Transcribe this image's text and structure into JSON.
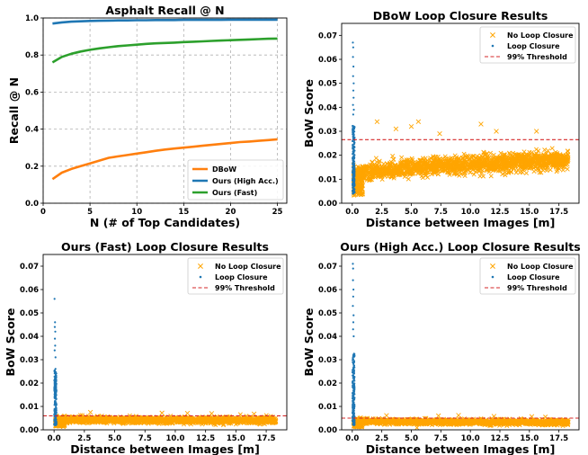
{
  "chart_data": [
    {
      "type": "line",
      "title": "Asphalt Recall @ N",
      "xlabel": "N (# of Top Candidates)",
      "ylabel": "Recall @ N",
      "xlim": [
        0,
        26
      ],
      "ylim": [
        0,
        1.0
      ],
      "xticks": [
        0,
        5,
        10,
        15,
        20,
        25
      ],
      "xtick_labels": [
        "0",
        "5",
        "10",
        "15",
        "20",
        "25"
      ],
      "yticks": [
        0,
        0.2,
        0.4,
        0.6,
        0.8,
        1.0
      ],
      "ytick_labels": [
        "0.0",
        "0.2",
        "0.4",
        "0.6",
        "0.8",
        "1.0"
      ],
      "grid": true,
      "legend_position": "lower-right",
      "x": [
        1,
        2,
        3,
        4,
        5,
        6,
        7,
        8,
        9,
        10,
        11,
        12,
        13,
        14,
        15,
        16,
        17,
        18,
        19,
        20,
        21,
        22,
        23,
        24,
        25
      ],
      "series": [
        {
          "name": "DBoW",
          "color": "#ff7f0e",
          "values": [
            0.13,
            0.165,
            0.185,
            0.2,
            0.215,
            0.23,
            0.245,
            0.253,
            0.26,
            0.268,
            0.275,
            0.283,
            0.29,
            0.295,
            0.3,
            0.305,
            0.31,
            0.315,
            0.32,
            0.325,
            0.33,
            0.333,
            0.337,
            0.341,
            0.345
          ]
        },
        {
          "name": "Ours (High Acc.)",
          "color": "#1f77b4",
          "values": [
            0.97,
            0.976,
            0.98,
            0.982,
            0.984,
            0.985,
            0.986,
            0.987,
            0.987,
            0.988,
            0.988,
            0.989,
            0.989,
            0.989,
            0.99,
            0.99,
            0.99,
            0.99,
            0.99,
            0.991,
            0.991,
            0.991,
            0.991,
            0.991,
            0.991
          ]
        },
        {
          "name": "Ours (Fast)",
          "color": "#2ca02c",
          "values": [
            0.76,
            0.79,
            0.807,
            0.819,
            0.828,
            0.836,
            0.842,
            0.848,
            0.852,
            0.856,
            0.86,
            0.863,
            0.865,
            0.867,
            0.87,
            0.872,
            0.874,
            0.876,
            0.878,
            0.88,
            0.882,
            0.884,
            0.886,
            0.888,
            0.889
          ]
        }
      ]
    },
    {
      "type": "scatter",
      "title": "DBoW Loop Closure Results",
      "xlabel": "Distance between Images [m]",
      "ylabel": "BoW Score",
      "xlim": [
        -0.9,
        19.2
      ],
      "ylim": [
        0,
        0.075
      ],
      "xticks": [
        0,
        2.5,
        5,
        7.5,
        10,
        12.5,
        15,
        17.5
      ],
      "xtick_labels": [
        "0.0",
        "2.5",
        "5.0",
        "7.5",
        "10.0",
        "12.5",
        "15.0",
        "17.5"
      ],
      "yticks": [
        0,
        0.01,
        0.02,
        0.03,
        0.04,
        0.05,
        0.06,
        0.07
      ],
      "ytick_labels": [
        "0.00",
        "0.01",
        "0.02",
        "0.03",
        "0.04",
        "0.05",
        "0.06",
        "0.07"
      ],
      "grid": false,
      "legend_position": "top-right",
      "threshold": {
        "name": "99% Threshold",
        "value": 0.0265,
        "color": "#d62728"
      },
      "series": [
        {
          "name": "No Loop Closure",
          "marker": "x",
          "color": "#ffa500",
          "band": {
            "x_range": [
              0.1,
              18.3
            ],
            "start_mean": 0.011,
            "end_mean": 0.018,
            "spread": 0.003,
            "upper_outliers": [
              [
                2.1,
                0.034
              ],
              [
                5.6,
                0.034
              ],
              [
                5.0,
                0.032
              ],
              [
                10.9,
                0.033
              ],
              [
                15.6,
                0.03
              ],
              [
                12.2,
                0.03
              ],
              [
                3.7,
                0.031
              ],
              [
                7.4,
                0.029
              ]
            ]
          }
        },
        {
          "name": "Loop Closure",
          "marker": "dot",
          "color": "#1f77b4",
          "x_range": [
            0.02,
            0.2
          ],
          "y_range": [
            0.004,
            0.067
          ],
          "tall_points": [
            [
              0.05,
              0.067
            ],
            [
              0.08,
              0.065
            ],
            [
              0.06,
              0.061
            ],
            [
              0.1,
              0.057
            ],
            [
              0.07,
              0.053
            ],
            [
              0.12,
              0.05
            ],
            [
              0.09,
              0.047
            ],
            [
              0.11,
              0.044
            ],
            [
              0.06,
              0.041
            ],
            [
              0.13,
              0.039
            ],
            [
              0.08,
              0.037
            ]
          ]
        }
      ]
    },
    {
      "type": "scatter",
      "title": "Ours (Fast) Loop Closure Results",
      "xlabel": "Distance between Images [m]",
      "ylabel": "BoW Score",
      "xlim": [
        -0.9,
        19.2
      ],
      "ylim": [
        0,
        0.075
      ],
      "xticks": [
        0,
        2.5,
        5,
        7.5,
        10,
        12.5,
        15,
        17.5
      ],
      "xtick_labels": [
        "0.0",
        "2.5",
        "5.0",
        "7.5",
        "10.0",
        "12.5",
        "15.0",
        "17.5"
      ],
      "yticks": [
        0,
        0.01,
        0.02,
        0.03,
        0.04,
        0.05,
        0.06,
        0.07
      ],
      "ytick_labels": [
        "0.00",
        "0.01",
        "0.02",
        "0.03",
        "0.04",
        "0.05",
        "0.06",
        "0.07"
      ],
      "grid": false,
      "legend_position": "top-right",
      "threshold": {
        "name": "99% Threshold",
        "value": 0.006,
        "color": "#d62728"
      },
      "series": [
        {
          "name": "No Loop Closure",
          "marker": "x",
          "color": "#ffa500",
          "band": {
            "x_range": [
              0.1,
              18.3
            ],
            "start_mean": 0.0045,
            "end_mean": 0.004,
            "spread": 0.0011,
            "upper_outliers": [
              [
                3.0,
                0.0075
              ],
              [
                8.9,
                0.0072
              ],
              [
                11.0,
                0.0071
              ],
              [
                13.0,
                0.007
              ],
              [
                16.5,
                0.0068
              ]
            ]
          }
        },
        {
          "name": "Loop Closure",
          "marker": "dot",
          "color": "#1f77b4",
          "x_range": [
            0.02,
            0.2
          ],
          "y_range": [
            0.002,
            0.056
          ],
          "tall_points": [
            [
              0.04,
              0.056
            ],
            [
              0.08,
              0.046
            ],
            [
              0.06,
              0.044
            ],
            [
              0.1,
              0.042
            ],
            [
              0.07,
              0.039
            ],
            [
              0.09,
              0.036
            ],
            [
              0.05,
              0.034
            ],
            [
              0.12,
              0.031
            ]
          ]
        }
      ]
    },
    {
      "type": "scatter",
      "title": "Ours (High Acc.) Loop Closure Results",
      "xlabel": "Distance between Images [m]",
      "ylabel": "BoW Score",
      "xlim": [
        -0.9,
        19.2
      ],
      "ylim": [
        0,
        0.075
      ],
      "xticks": [
        0,
        2.5,
        5,
        7.5,
        10,
        12.5,
        15,
        17.5
      ],
      "xtick_labels": [
        "0.0",
        "2.5",
        "5.0",
        "7.5",
        "10.0",
        "12.5",
        "15.0",
        "17.5"
      ],
      "yticks": [
        0,
        0.01,
        0.02,
        0.03,
        0.04,
        0.05,
        0.06,
        0.07
      ],
      "ytick_labels": [
        "0.00",
        "0.01",
        "0.02",
        "0.03",
        "0.04",
        "0.05",
        "0.06",
        "0.07"
      ],
      "grid": false,
      "legend_position": "top-right",
      "threshold": {
        "name": "99% Threshold",
        "value": 0.005,
        "color": "#d62728"
      },
      "series": [
        {
          "name": "No Loop Closure",
          "marker": "x",
          "color": "#ffa500",
          "band": {
            "x_range": [
              0.1,
              18.3
            ],
            "start_mean": 0.0038,
            "end_mean": 0.0032,
            "spread": 0.0009,
            "upper_outliers": [
              [
                2.9,
                0.0061
              ],
              [
                7.3,
                0.006
              ],
              [
                9.0,
                0.0062
              ],
              [
                12.0,
                0.0058
              ],
              [
                15.2,
                0.0057
              ]
            ]
          }
        },
        {
          "name": "Loop Closure",
          "marker": "dot",
          "color": "#1f77b4",
          "x_range": [
            0.02,
            0.2
          ],
          "y_range": [
            0.002,
            0.071
          ],
          "tall_points": [
            [
              0.05,
              0.071
            ],
            [
              0.07,
              0.069
            ],
            [
              0.06,
              0.064
            ],
            [
              0.1,
              0.06
            ],
            [
              0.08,
              0.057
            ],
            [
              0.05,
              0.053
            ],
            [
              0.11,
              0.049
            ],
            [
              0.09,
              0.046
            ],
            [
              0.07,
              0.043
            ],
            [
              0.12,
              0.04
            ]
          ]
        }
      ]
    }
  ]
}
